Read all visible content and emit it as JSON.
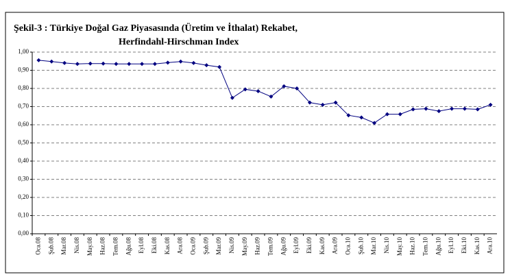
{
  "chart_data": {
    "type": "line",
    "title": [
      "Şekil-3 : Türkiye Doğal Gaz Piyasasında (Üretim ve İthalat) Rekabet,",
      "Herfindahl-Hirschman Index"
    ],
    "categories": [
      "Oca.08",
      "Şub.08",
      "Mar.08",
      "Nis.08",
      "May.08",
      "Haz.08",
      "Tem.08",
      "Ağu.08",
      "Eyl.08",
      "Eki.08",
      "Kas.08",
      "Ara.08",
      "Oca.09",
      "Şub.09",
      "Mar.09",
      "Nis.09",
      "May.09",
      "Haz.09",
      "Tem.09",
      "Ağu.09",
      "Eyl.09",
      "Eki.09",
      "Kas.09",
      "Ara.09",
      "Oca.10",
      "Şub.10",
      "Mar.10",
      "Nis.10",
      "May.10",
      "Haz.10",
      "Tem.10",
      "Ağu.10",
      "Eyl.10",
      "Eki.10",
      "Kas.10",
      "Ara.10"
    ],
    "values": [
      0.955,
      0.948,
      0.94,
      0.935,
      0.937,
      0.937,
      0.935,
      0.935,
      0.935,
      0.935,
      0.942,
      0.948,
      0.94,
      0.928,
      0.918,
      0.748,
      0.795,
      0.785,
      0.755,
      0.812,
      0.8,
      0.722,
      0.71,
      0.722,
      0.652,
      0.64,
      0.61,
      0.658,
      0.658,
      0.685,
      0.688,
      0.675,
      0.688,
      0.688,
      0.685,
      0.71
    ],
    "color": "#000080",
    "ylim": [
      0,
      1
    ],
    "yticks": [
      {
        "value": 0,
        "label": "0,00"
      },
      {
        "value": 0.1,
        "label": "0,10"
      },
      {
        "value": 0.2,
        "label": "0,20"
      },
      {
        "value": 0.3,
        "label": "0,30"
      },
      {
        "value": 0.4,
        "label": "0,40"
      },
      {
        "value": 0.5,
        "label": "0,50"
      },
      {
        "value": 0.6,
        "label": "0,60"
      },
      {
        "value": 0.7,
        "label": "0,70"
      },
      {
        "value": 0.8,
        "label": "0,80"
      },
      {
        "value": 0.9,
        "label": "0,90"
      },
      {
        "value": 1,
        "label": "1,00"
      }
    ],
    "grid": true
  }
}
